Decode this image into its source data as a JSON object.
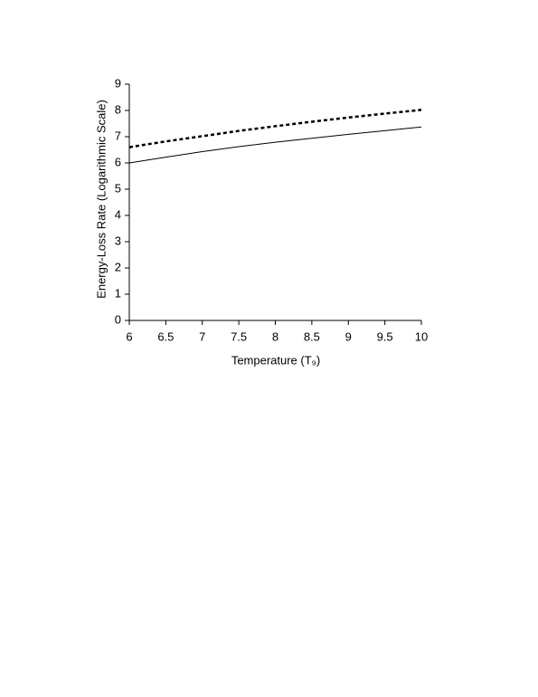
{
  "chart_data": {
    "type": "line",
    "x_label": "Temperature (T₉)",
    "y_label": "Energy-Loss Rate   (Logarithmic Scale)",
    "x": [
      6,
      6.5,
      7,
      7.5,
      8,
      8.5,
      9,
      9.5,
      10
    ],
    "series": [
      {
        "color": "#000000",
        "style": "solid",
        "values": [
          6.0,
          6.22,
          6.43,
          6.62,
          6.79,
          6.94,
          7.09,
          7.23,
          7.37
        ]
      },
      {
        "color": "#000000",
        "style": "dashed",
        "values": [
          6.6,
          6.82,
          7.02,
          7.22,
          7.4,
          7.57,
          7.73,
          7.88,
          8.02
        ]
      }
    ],
    "xlim": [
      6,
      10
    ],
    "xticks": [
      6,
      6.5,
      7,
      7.5,
      8,
      8.5,
      9,
      9.5,
      10
    ],
    "ylim": [
      0,
      9
    ],
    "yticks": [
      0,
      1,
      2,
      3,
      4,
      5,
      6,
      7,
      8,
      9
    ],
    "grid": false
  }
}
